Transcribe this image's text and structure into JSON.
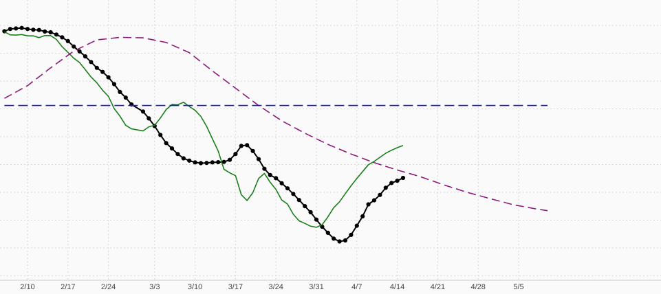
{
  "chart_data": {
    "type": "line",
    "title": "",
    "xlabel": "",
    "ylabel": "",
    "x_domain": [
      "2/6",
      "5/10"
    ],
    "y_domain_frac": [
      0,
      1
    ],
    "grid": true,
    "legend": "none",
    "x_ticks": [
      {
        "date": "2/10",
        "label": "2/10"
      },
      {
        "date": "2/17",
        "label": "2/17"
      },
      {
        "date": "2/24",
        "label": "2/24"
      },
      {
        "date": "3/3",
        "label": "3/3"
      },
      {
        "date": "3/10",
        "label": "3/10"
      },
      {
        "date": "3/17",
        "label": "3/17"
      },
      {
        "date": "3/24",
        "label": "3/24"
      },
      {
        "date": "3/31",
        "label": "3/31"
      },
      {
        "date": "4/7",
        "label": "4/7"
      },
      {
        "date": "4/14",
        "label": "4/14"
      },
      {
        "date": "4/21",
        "label": "4/21"
      },
      {
        "date": "4/28",
        "label": "4/28"
      },
      {
        "date": "5/5",
        "label": "5/5"
      }
    ],
    "series": [
      {
        "key": "black",
        "color": "#000000",
        "style": "solid",
        "markers": true,
        "points": [
          [
            "2/6",
            0.904
          ],
          [
            "2/7",
            0.913
          ],
          [
            "2/8",
            0.915
          ],
          [
            "2/9",
            0.917
          ],
          [
            "2/10",
            0.913
          ],
          [
            "2/11",
            0.91
          ],
          [
            "2/12",
            0.909
          ],
          [
            "2/13",
            0.903
          ],
          [
            "2/14",
            0.9
          ],
          [
            "2/15",
            0.891
          ],
          [
            "2/16",
            0.88
          ],
          [
            "2/17",
            0.865
          ],
          [
            "2/18",
            0.844
          ],
          [
            "2/19",
            0.825
          ],
          [
            "2/20",
            0.805
          ],
          [
            "2/21",
            0.783
          ],
          [
            "2/22",
            0.76
          ],
          [
            "2/23",
            0.744
          ],
          [
            "2/24",
            0.723
          ],
          [
            "2/25",
            0.696
          ],
          [
            "2/26",
            0.665
          ],
          [
            "2/27",
            0.643
          ],
          [
            "2/28",
            0.616
          ],
          [
            "3/1",
            0.588
          ],
          [
            "3/2",
            0.561
          ],
          [
            "3/3",
            0.531
          ],
          [
            "3/4",
            0.496
          ],
          [
            "3/5",
            0.464
          ],
          [
            "3/6",
            0.443
          ],
          [
            "3/7",
            0.421
          ],
          [
            "3/8",
            0.404
          ],
          [
            "3/9",
            0.395
          ],
          [
            "3/10",
            0.388
          ],
          [
            "3/11",
            0.385
          ],
          [
            "3/12",
            0.386
          ],
          [
            "3/13",
            0.388
          ],
          [
            "3/14",
            0.389
          ],
          [
            "3/15",
            0.39
          ],
          [
            "3/16",
            0.398
          ],
          [
            "3/17",
            0.421
          ],
          [
            "3/18",
            0.453
          ],
          [
            "3/19",
            0.456
          ],
          [
            "3/20",
            0.433
          ],
          [
            "3/21",
            0.401
          ],
          [
            "3/22",
            0.363
          ],
          [
            "3/23",
            0.338
          ],
          [
            "3/24",
            0.326
          ],
          [
            "3/25",
            0.306
          ],
          [
            "3/26",
            0.286
          ],
          [
            "3/27",
            0.264
          ],
          [
            "3/28",
            0.24
          ],
          [
            "3/29",
            0.216
          ],
          [
            "3/30",
            0.192
          ],
          [
            "3/31",
            0.163
          ],
          [
            "4/1",
            0.135
          ],
          [
            "4/2",
            0.111
          ],
          [
            "4/3",
            0.088
          ],
          [
            "4/4",
            0.077
          ],
          [
            "4/5",
            0.081
          ],
          [
            "4/6",
            0.103
          ],
          [
            "4/7",
            0.139
          ],
          [
            "4/8",
            0.176
          ],
          [
            "4/9",
            0.223
          ],
          [
            "4/10",
            0.239
          ],
          [
            "4/11",
            0.26
          ],
          [
            "4/12",
            0.288
          ],
          [
            "4/13",
            0.307
          ],
          [
            "4/14",
            0.316
          ],
          [
            "4/15",
            0.327
          ]
        ]
      },
      {
        "key": "green",
        "color": "#1a7f1a",
        "style": "solid",
        "markers": false,
        "points": [
          [
            "2/6",
            0.902
          ],
          [
            "2/7",
            0.89
          ],
          [
            "2/8",
            0.889
          ],
          [
            "2/9",
            0.891
          ],
          [
            "2/10",
            0.886
          ],
          [
            "2/11",
            0.886
          ],
          [
            "2/12",
            0.879
          ],
          [
            "2/13",
            0.887
          ],
          [
            "2/14",
            0.887
          ],
          [
            "2/15",
            0.872
          ],
          [
            "2/16",
            0.843
          ],
          [
            "2/17",
            0.821
          ],
          [
            "2/18",
            0.798
          ],
          [
            "2/19",
            0.781
          ],
          [
            "2/20",
            0.753
          ],
          [
            "2/21",
            0.724
          ],
          [
            "2/22",
            0.701
          ],
          [
            "2/23",
            0.672
          ],
          [
            "2/24",
            0.648
          ],
          [
            "2/25",
            0.6
          ],
          [
            "2/26",
            0.57
          ],
          [
            "2/27",
            0.534
          ],
          [
            "2/28",
            0.52
          ],
          [
            "3/1",
            0.512
          ],
          [
            "3/2",
            0.528
          ],
          [
            "3/3",
            0.534
          ],
          [
            "3/4",
            0.563
          ],
          [
            "3/5",
            0.596
          ],
          [
            "3/6",
            0.616
          ],
          [
            "3/7",
            0.615
          ],
          [
            "3/8",
            0.625
          ],
          [
            "3/9",
            0.608
          ],
          [
            "3/10",
            0.593
          ],
          [
            "3/11",
            0.569
          ],
          [
            "3/12",
            0.53
          ],
          [
            "3/13",
            0.481
          ],
          [
            "3/14",
            0.433
          ],
          [
            "3/15",
            0.361
          ],
          [
            "3/16",
            0.347
          ],
          [
            "3/17",
            0.336
          ],
          [
            "3/18",
            0.261
          ],
          [
            "3/19",
            0.238
          ],
          [
            "3/20",
            0.269
          ],
          [
            "3/21",
            0.325
          ],
          [
            "3/22",
            0.345
          ],
          [
            "3/23",
            0.31
          ],
          [
            "3/24",
            0.282
          ],
          [
            "3/25",
            0.24
          ],
          [
            "3/26",
            0.224
          ],
          [
            "3/27",
            0.184
          ],
          [
            "3/28",
            0.158
          ],
          [
            "3/29",
            0.148
          ],
          [
            "3/30",
            0.137
          ],
          [
            "3/31",
            0.133
          ],
          [
            "4/1",
            0.143
          ],
          [
            "4/2",
            0.174
          ],
          [
            "4/3",
            0.21
          ],
          [
            "4/4",
            0.233
          ],
          [
            "4/5",
            0.265
          ],
          [
            "4/6",
            0.296
          ],
          [
            "4/7",
            0.325
          ],
          [
            "4/8",
            0.352
          ],
          [
            "4/9",
            0.379
          ],
          [
            "4/10",
            0.392
          ],
          [
            "4/11",
            0.408
          ],
          [
            "4/12",
            0.424
          ],
          [
            "4/13",
            0.436
          ],
          [
            "4/14",
            0.446
          ],
          [
            "4/15",
            0.455
          ]
        ]
      },
      {
        "key": "purple",
        "color": "#8b1a7a",
        "style": "dashed",
        "markers": false,
        "points": [
          [
            "2/6",
            0.64
          ],
          [
            "2/10",
            0.69
          ],
          [
            "2/14",
            0.76
          ],
          [
            "2/18",
            0.826
          ],
          [
            "2/22",
            0.87
          ],
          [
            "2/26",
            0.88
          ],
          [
            "3/1",
            0.878
          ],
          [
            "3/5",
            0.86
          ],
          [
            "3/9",
            0.82
          ],
          [
            "3/13",
            0.748
          ],
          [
            "3/17",
            0.68
          ],
          [
            "3/21",
            0.612
          ],
          [
            "3/25",
            0.552
          ],
          [
            "3/29",
            0.503
          ],
          [
            "4/2",
            0.459
          ],
          [
            "4/6",
            0.421
          ],
          [
            "4/10",
            0.387
          ],
          [
            "4/14",
            0.358
          ],
          [
            "4/18",
            0.332
          ],
          [
            "4/22",
            0.3
          ],
          [
            "4/26",
            0.271
          ],
          [
            "4/30",
            0.246
          ],
          [
            "5/4",
            0.222
          ],
          [
            "5/8",
            0.205
          ],
          [
            "5/10",
            0.198
          ]
        ]
      },
      {
        "key": "blue",
        "color": "#1a1acc",
        "style": "dashed",
        "markers": false,
        "points": [
          [
            "2/6",
            0.612
          ],
          [
            "5/10",
            0.612
          ]
        ]
      }
    ]
  }
}
